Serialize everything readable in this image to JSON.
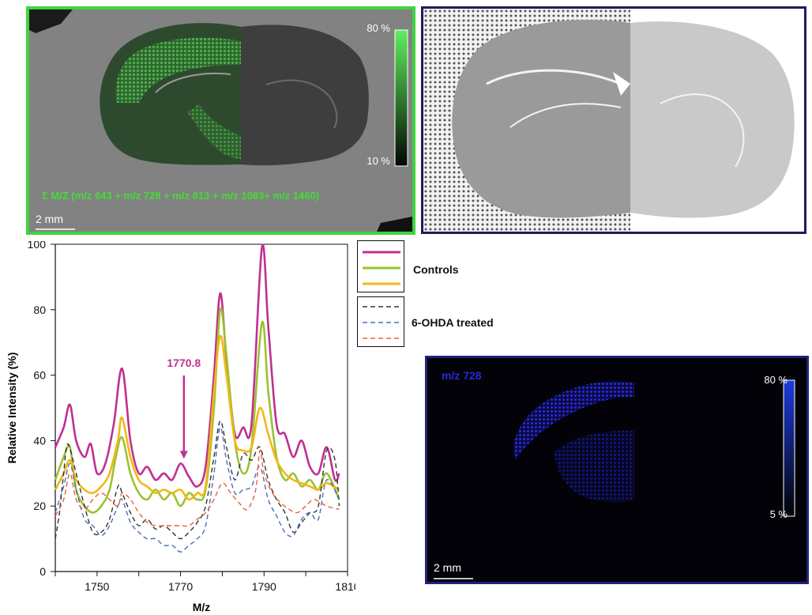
{
  "colors": {
    "controls": [
      "#c03090",
      "#9cc232",
      "#f2b814"
    ],
    "treated": [
      "#333333",
      "#4a6fb8",
      "#e8603a"
    ],
    "green_panel_border": "#3ed43e",
    "blue_panel_border": "#22227a",
    "annotation": "#c03090"
  },
  "green_panel": {
    "caption": "Σ M/Z (m/z 643 + m/z 728 + m/z 813 + m/z 1083+ m/z 1460)",
    "colorbar_max": "80 %",
    "colorbar_min": "10 %",
    "scalebar": "2 mm"
  },
  "optical_panel": {},
  "blue_panel": {
    "mz_label": "m/z 728",
    "colorbar_max": "80 %",
    "colorbar_min": "5 %",
    "scalebar": "2 mm"
  },
  "legend": {
    "controls_label": "Controls",
    "treated_label": "6-OHDA treated"
  },
  "chart_data": {
    "type": "line",
    "xlabel": "M/z",
    "ylabel": "Relative Intensity (%)",
    "xlim": [
      1740,
      1810
    ],
    "ylim": [
      0,
      100
    ],
    "xticks": [
      "1750",
      "1770",
      "1790",
      "1810"
    ],
    "yticks": [
      "0",
      "20",
      "40",
      "60",
      "80",
      "100"
    ],
    "annotation": {
      "label": "1770.8",
      "x": 1770.8,
      "y": 33
    },
    "series": [
      {
        "group": "Controls",
        "style": "solid",
        "points": [
          [
            1740,
            38
          ],
          [
            1742,
            44
          ],
          [
            1743.5,
            51
          ],
          [
            1745,
            40
          ],
          [
            1747,
            35
          ],
          [
            1748.5,
            39
          ],
          [
            1750,
            30
          ],
          [
            1752,
            33
          ],
          [
            1754,
            45
          ],
          [
            1756,
            62
          ],
          [
            1758,
            40
          ],
          [
            1760,
            30
          ],
          [
            1762,
            32
          ],
          [
            1764,
            28
          ],
          [
            1766,
            30
          ],
          [
            1768,
            28
          ],
          [
            1770,
            33
          ],
          [
            1772,
            29
          ],
          [
            1774,
            26
          ],
          [
            1776,
            32
          ],
          [
            1778,
            60
          ],
          [
            1779.5,
            85
          ],
          [
            1781,
            65
          ],
          [
            1783,
            42
          ],
          [
            1785,
            44
          ],
          [
            1787,
            45
          ],
          [
            1789.5,
            99
          ],
          [
            1791,
            75
          ],
          [
            1793,
            45
          ],
          [
            1795,
            42
          ],
          [
            1797,
            35
          ],
          [
            1799,
            40
          ],
          [
            1801,
            32
          ],
          [
            1803,
            30
          ],
          [
            1805,
            38
          ],
          [
            1807,
            28
          ],
          [
            1808,
            30
          ]
        ]
      },
      {
        "group": "Controls",
        "style": "solid",
        "points": [
          [
            1740,
            28
          ],
          [
            1742,
            35
          ],
          [
            1743.5,
            38
          ],
          [
            1745,
            25
          ],
          [
            1747,
            20
          ],
          [
            1749,
            18
          ],
          [
            1751,
            20
          ],
          [
            1753,
            25
          ],
          [
            1754.5,
            35
          ],
          [
            1756,
            41
          ],
          [
            1758,
            30
          ],
          [
            1760,
            24
          ],
          [
            1762,
            22
          ],
          [
            1764,
            25
          ],
          [
            1766,
            22
          ],
          [
            1768,
            24
          ],
          [
            1770,
            20
          ],
          [
            1772,
            24
          ],
          [
            1774,
            22
          ],
          [
            1776,
            25
          ],
          [
            1778,
            50
          ],
          [
            1779.5,
            80
          ],
          [
            1781,
            66
          ],
          [
            1783,
            40
          ],
          [
            1785,
            30
          ],
          [
            1787,
            38
          ],
          [
            1789.5,
            76
          ],
          [
            1791,
            55
          ],
          [
            1793,
            35
          ],
          [
            1795,
            28
          ],
          [
            1797,
            30
          ],
          [
            1799,
            26
          ],
          [
            1801,
            28
          ],
          [
            1803,
            25
          ],
          [
            1805,
            30
          ],
          [
            1808,
            22
          ]
        ]
      },
      {
        "group": "Controls",
        "style": "solid",
        "points": [
          [
            1740,
            25
          ],
          [
            1742,
            30
          ],
          [
            1743.5,
            34
          ],
          [
            1745,
            28
          ],
          [
            1747,
            25
          ],
          [
            1749,
            24
          ],
          [
            1751,
            26
          ],
          [
            1753,
            30
          ],
          [
            1755,
            40
          ],
          [
            1756,
            47
          ],
          [
            1758,
            35
          ],
          [
            1760,
            28
          ],
          [
            1762,
            26
          ],
          [
            1764,
            24
          ],
          [
            1766,
            25
          ],
          [
            1768,
            24
          ],
          [
            1770,
            25
          ],
          [
            1772,
            22
          ],
          [
            1774,
            24
          ],
          [
            1776,
            26
          ],
          [
            1778,
            55
          ],
          [
            1779.5,
            72
          ],
          [
            1781,
            60
          ],
          [
            1783,
            40
          ],
          [
            1785,
            37
          ],
          [
            1787,
            38
          ],
          [
            1789,
            50
          ],
          [
            1791,
            42
          ],
          [
            1793,
            34
          ],
          [
            1795,
            30
          ],
          [
            1797,
            28
          ],
          [
            1799,
            27
          ],
          [
            1801,
            26
          ],
          [
            1803,
            25
          ],
          [
            1805,
            27
          ],
          [
            1808,
            25
          ]
        ]
      },
      {
        "group": "6-OHDA treated",
        "style": "dashed",
        "points": [
          [
            1740,
            10
          ],
          [
            1741,
            18
          ],
          [
            1742,
            30
          ],
          [
            1743,
            39
          ],
          [
            1745,
            30
          ],
          [
            1747,
            20
          ],
          [
            1749,
            12
          ],
          [
            1751,
            12
          ],
          [
            1753,
            16
          ],
          [
            1755,
            26
          ],
          [
            1756,
            24
          ],
          [
            1758,
            18
          ],
          [
            1760,
            14
          ],
          [
            1762,
            16
          ],
          [
            1764,
            13
          ],
          [
            1766,
            14
          ],
          [
            1768,
            12
          ],
          [
            1770,
            10
          ],
          [
            1772,
            12
          ],
          [
            1774,
            15
          ],
          [
            1776,
            20
          ],
          [
            1778,
            35
          ],
          [
            1779.5,
            46
          ],
          [
            1781,
            38
          ],
          [
            1783,
            28
          ],
          [
            1785,
            36
          ],
          [
            1787,
            34
          ],
          [
            1789,
            38
          ],
          [
            1791,
            28
          ],
          [
            1793,
            22
          ],
          [
            1795,
            18
          ],
          [
            1797,
            12
          ],
          [
            1799,
            15
          ],
          [
            1801,
            18
          ],
          [
            1803,
            20
          ],
          [
            1805,
            37
          ],
          [
            1807,
            34
          ],
          [
            1808,
            20
          ]
        ]
      },
      {
        "group": "6-OHDA treated",
        "style": "dashed",
        "points": [
          [
            1740,
            18
          ],
          [
            1742,
            26
          ],
          [
            1743.5,
            33
          ],
          [
            1745,
            25
          ],
          [
            1747,
            16
          ],
          [
            1749,
            14
          ],
          [
            1751,
            11
          ],
          [
            1753,
            14
          ],
          [
            1755,
            20
          ],
          [
            1756,
            22
          ],
          [
            1758,
            15
          ],
          [
            1760,
            12
          ],
          [
            1762,
            10
          ],
          [
            1764,
            10
          ],
          [
            1766,
            8
          ],
          [
            1768,
            8
          ],
          [
            1770,
            6
          ],
          [
            1772,
            8
          ],
          [
            1774,
            10
          ],
          [
            1776,
            14
          ],
          [
            1778,
            30
          ],
          [
            1779.5,
            44
          ],
          [
            1781,
            34
          ],
          [
            1783,
            24
          ],
          [
            1785,
            25
          ],
          [
            1787,
            26
          ],
          [
            1789,
            32
          ],
          [
            1791,
            22
          ],
          [
            1793,
            17
          ],
          [
            1795,
            12
          ],
          [
            1797,
            11
          ],
          [
            1799,
            16
          ],
          [
            1801,
            18
          ],
          [
            1803,
            16
          ],
          [
            1805,
            28
          ],
          [
            1808,
            22
          ]
        ]
      },
      {
        "group": "6-OHDA treated",
        "style": "dashed",
        "points": [
          [
            1740,
            17
          ],
          [
            1742,
            22
          ],
          [
            1743.5,
            30
          ],
          [
            1745,
            22
          ],
          [
            1747,
            19
          ],
          [
            1749,
            22
          ],
          [
            1751,
            24
          ],
          [
            1753,
            22
          ],
          [
            1755,
            20
          ],
          [
            1756,
            24
          ],
          [
            1758,
            22
          ],
          [
            1760,
            18
          ],
          [
            1762,
            15
          ],
          [
            1764,
            14
          ],
          [
            1766,
            14
          ],
          [
            1768,
            14
          ],
          [
            1770,
            14
          ],
          [
            1772,
            14
          ],
          [
            1774,
            16
          ],
          [
            1776,
            18
          ],
          [
            1778,
            22
          ],
          [
            1780,
            27
          ],
          [
            1782,
            24
          ],
          [
            1784,
            21
          ],
          [
            1786,
            19
          ],
          [
            1788,
            25
          ],
          [
            1789,
            37
          ],
          [
            1790,
            30
          ],
          [
            1792,
            24
          ],
          [
            1794,
            21
          ],
          [
            1796,
            19
          ],
          [
            1798,
            18
          ],
          [
            1800,
            20
          ],
          [
            1802,
            22
          ],
          [
            1805,
            20
          ],
          [
            1808,
            19
          ]
        ]
      }
    ]
  }
}
